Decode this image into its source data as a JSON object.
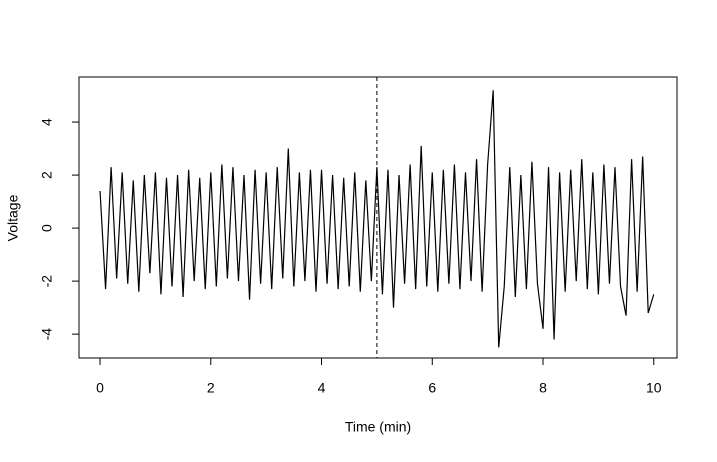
{
  "chart_data": {
    "type": "line",
    "xlabel": "Time (min)",
    "ylabel": "Voltage",
    "x": [
      0,
      0.1,
      0.2,
      0.3,
      0.4,
      0.5,
      0.6,
      0.7,
      0.8,
      0.9,
      1,
      1.1,
      1.2,
      1.3,
      1.4,
      1.5,
      1.6,
      1.7,
      1.8,
      1.9,
      2,
      2.1,
      2.2,
      2.3,
      2.4,
      2.5,
      2.6,
      2.7,
      2.8,
      2.9,
      3,
      3.1,
      3.2,
      3.3,
      3.4,
      3.5,
      3.6,
      3.7,
      3.8,
      3.9,
      4,
      4.1,
      4.2,
      4.3,
      4.4,
      4.5,
      4.6,
      4.7,
      4.8,
      4.9,
      5,
      5.1,
      5.2,
      5.3,
      5.4,
      5.5,
      5.6,
      5.7,
      5.8,
      5.9,
      6,
      6.1,
      6.2,
      6.3,
      6.4,
      6.5,
      6.6,
      6.7,
      6.8,
      6.9,
      7,
      7.1,
      7.2,
      7.3,
      7.4,
      7.5,
      7.6,
      7.7,
      7.8,
      7.9,
      8,
      8.1,
      8.2,
      8.3,
      8.4,
      8.5,
      8.6,
      8.7,
      8.8,
      8.9,
      9,
      9.1,
      9.2,
      9.3,
      9.4,
      9.5,
      9.6,
      9.7,
      9.8,
      9.9,
      10
    ],
    "series": [
      {
        "color": "#000000",
        "values": [
          1.4,
          -2.3,
          2.3,
          -1.9,
          2.1,
          -2.1,
          1.8,
          -2.4,
          2.0,
          -1.7,
          2.1,
          -2.5,
          1.9,
          -2.2,
          2.0,
          -2.6,
          2.2,
          -2.0,
          1.9,
          -2.3,
          2.1,
          -2.2,
          2.4,
          -1.9,
          2.3,
          -2.0,
          2.0,
          -2.7,
          2.2,
          -2.1,
          2.1,
          -2.3,
          2.3,
          -1.9,
          3.0,
          -2.2,
          2.1,
          -2.0,
          2.2,
          -2.4,
          2.2,
          -2.1,
          2.0,
          -2.3,
          1.9,
          -2.2,
          2.1,
          -2.4,
          1.8,
          -2.0,
          2.3,
          -2.5,
          2.2,
          -3.0,
          2.0,
          -2.1,
          2.4,
          -2.3,
          3.1,
          -2.2,
          2.1,
          -2.4,
          2.2,
          -2.1,
          2.4,
          -2.3,
          2.1,
          -2.0,
          2.6,
          -2.4,
          2.4,
          5.2,
          -4.5,
          -2.2,
          2.3,
          -2.6,
          2.0,
          -2.3,
          2.5,
          -2.1,
          -3.8,
          2.3,
          -4.2,
          2.1,
          -2.4,
          2.2,
          -2.0,
          2.6,
          -2.3,
          2.1,
          -2.5,
          2.4,
          -2.1,
          2.3,
          -2.2,
          -3.3,
          2.6,
          -2.4,
          2.7,
          -3.2,
          -2.5
        ]
      }
    ],
    "vline": 5,
    "xlim": [
      -0.38,
      10.42
    ],
    "ylim": [
      -4.9,
      5.7
    ],
    "xticks": [
      0,
      2,
      4,
      6,
      8,
      10
    ],
    "yticks": [
      -4,
      -2,
      0,
      2,
      4
    ]
  }
}
